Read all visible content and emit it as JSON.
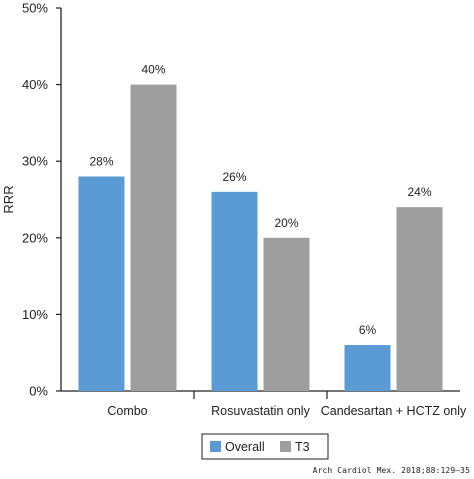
{
  "chart_data": {
    "type": "bar",
    "ylabel": "RRR",
    "xlabel": "",
    "ylim": [
      0,
      50
    ],
    "y_ticks": [
      "0%",
      "10%",
      "20%",
      "30%",
      "40%",
      "50%"
    ],
    "y_tick_values": [
      0,
      10,
      20,
      30,
      40,
      50
    ],
    "categories": [
      "Combo",
      "Rosuvastatin only",
      "Candesartan + HCTZ only"
    ],
    "series": [
      {
        "name": "Overall",
        "color": "#5b9bd5",
        "values": [
          28,
          26,
          6
        ],
        "labels": [
          "28%",
          "26%",
          "6%"
        ]
      },
      {
        "name": "T3",
        "color": "#9e9e9e",
        "values": [
          40,
          20,
          24
        ],
        "labels": [
          "40%",
          "20%",
          "24%"
        ]
      }
    ],
    "legend": "bottom",
    "grid": false
  },
  "source": "Arch Cardiol Mex. 2018;88:129–35"
}
